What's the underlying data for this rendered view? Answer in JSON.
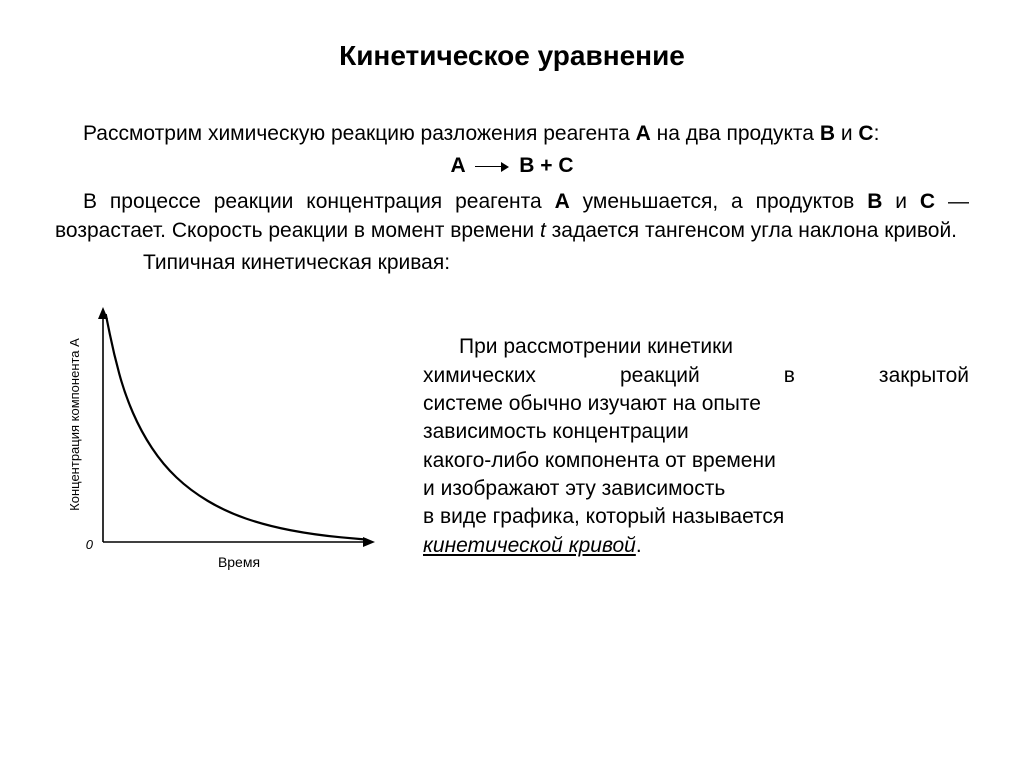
{
  "title": {
    "text": "Кинетическое уравнение",
    "fontsize": 28
  },
  "body_fontsize": 21,
  "para1_parts": {
    "a": "Рассмотрим химическую реакцию разложения реагента ",
    "b": "А",
    "c": " на два продукта ",
    "d": "В",
    "e": " и ",
    "f": "С",
    "g": ":"
  },
  "equation": {
    "lhs": "А",
    "rhs": "В + С"
  },
  "para2_parts": {
    "a": "В процессе реакции концентрация реагента ",
    "b": "А",
    "c": " уменьшается, а продуктов ",
    "d": "В",
    "e": " и ",
    "f": "С",
    "g": " — возрастает. Скорость реакции в момент времени ",
    "h": "t",
    "i": " задается тангенсом угла наклона кривой."
  },
  "para3": "Типичная кинетическая кривая:",
  "chart": {
    "type": "line",
    "x_label": "Время",
    "y_label": "Концентрация компонента А",
    "origin_label": "0",
    "background_color": "#ffffff",
    "axis_color": "#000000",
    "curve_color": "#000000",
    "axis_width": 1.6,
    "curve_width": 2.2,
    "label_fontsize": 13,
    "xlim": [
      0,
      100
    ],
    "ylim": [
      0,
      100
    ],
    "curve_points": [
      [
        1,
        97
      ],
      [
        4,
        80
      ],
      [
        8,
        63
      ],
      [
        14,
        47
      ],
      [
        22,
        33
      ],
      [
        32,
        22
      ],
      [
        45,
        13
      ],
      [
        60,
        7
      ],
      [
        78,
        3
      ],
      [
        97,
        1
      ]
    ]
  },
  "desc_lines": {
    "l1": "При рассмотрении кинетики",
    "l2a": "химических реакций в закрытой",
    "l3": "системе обычно изучают на опыте",
    "l4": "зависимость концентрации",
    "l5": "какого-либо компонента от времени",
    "l6": "и изображают эту зависимость",
    "l7": "в виде графика, который называется",
    "l8a": "кинетической кривой",
    "l8b": "."
  }
}
